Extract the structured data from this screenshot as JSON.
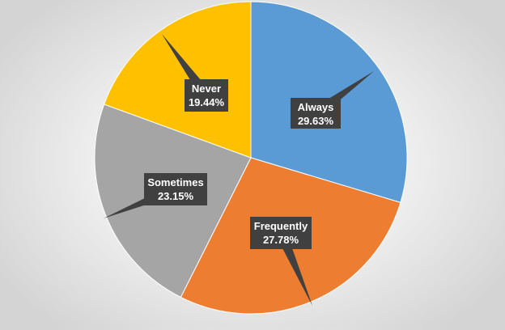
{
  "chart_data": {
    "type": "pie",
    "title": "",
    "start_angle_deg": 0,
    "direction": "clockwise",
    "slices": [
      {
        "label": "Always",
        "value": 29.63,
        "display": "29.63%",
        "color": "#5B9BD5"
      },
      {
        "label": "Frequently",
        "value": 27.78,
        "display": "27.78%",
        "color": "#ED7D31"
      },
      {
        "label": "Sometimes",
        "value": 23.15,
        "display": "23.15%",
        "color": "#A5A5A5"
      },
      {
        "label": "Never",
        "value": 19.44,
        "display": "19.44%",
        "color": "#FFC000"
      }
    ],
    "callout_style": {
      "box_color": "#404040",
      "text_color": "#FFFFFF"
    },
    "legend": "none"
  }
}
